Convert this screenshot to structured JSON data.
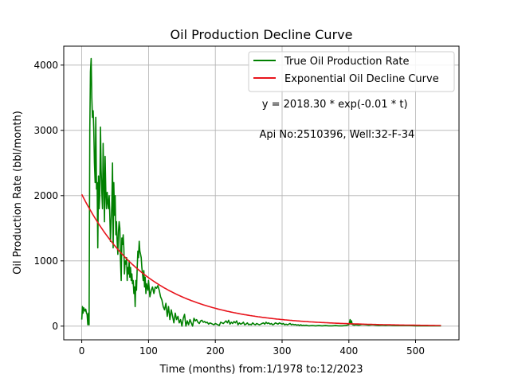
{
  "chart_data": {
    "type": "line",
    "title": "Oil Production Decline Curve",
    "xlabel": "Time (months) from:1/1978 to:12/2023",
    "ylabel": "Oil Production Rate (bbl/month)",
    "xlim": [
      -27,
      565
    ],
    "ylim": [
      -210,
      4290
    ],
    "xticks": [
      0,
      100,
      200,
      300,
      400,
      500
    ],
    "yticks": [
      0,
      1000,
      2000,
      3000,
      4000
    ],
    "grid": true,
    "legend_position": "top-right",
    "annotations": [
      {
        "text": "y = 2018.30 * exp(-0.01 * t)",
        "x": 270,
        "y": 3350
      },
      {
        "text": "Api No:2510396, Well:32-F-34",
        "x": 266,
        "y": 2890
      }
    ],
    "series": [
      {
        "name": "True Oil Production Rate",
        "color": "#008000",
        "points": [
          [
            0,
            100
          ],
          [
            1,
            300
          ],
          [
            2,
            200
          ],
          [
            3,
            280
          ],
          [
            4,
            250
          ],
          [
            5,
            230
          ],
          [
            6,
            260
          ],
          [
            7,
            200
          ],
          [
            8,
            180
          ],
          [
            9,
            20
          ],
          [
            10,
            200
          ],
          [
            11,
            20
          ],
          [
            12,
            3000
          ],
          [
            13,
            3900
          ],
          [
            14,
            4100
          ],
          [
            15,
            3500
          ],
          [
            16,
            3200
          ],
          [
            17,
            3300
          ],
          [
            18,
            3000
          ],
          [
            19,
            2500
          ],
          [
            20,
            2200
          ],
          [
            21,
            3200
          ],
          [
            22,
            2100
          ],
          [
            23,
            2200
          ],
          [
            24,
            1200
          ],
          [
            25,
            2300
          ],
          [
            26,
            1800
          ],
          [
            27,
            2000
          ],
          [
            28,
            3050
          ],
          [
            29,
            2400
          ],
          [
            30,
            2050
          ],
          [
            31,
            1800
          ],
          [
            32,
            2800
          ],
          [
            33,
            2200
          ],
          [
            34,
            1600
          ],
          [
            35,
            2600
          ],
          [
            36,
            2050
          ],
          [
            37,
            1800
          ],
          [
            38,
            2050
          ],
          [
            39,
            1900
          ],
          [
            40,
            1800
          ],
          [
            41,
            2000
          ],
          [
            42,
            1700
          ],
          [
            43,
            1300
          ],
          [
            44,
            1600
          ],
          [
            45,
            1850
          ],
          [
            46,
            2500
          ],
          [
            47,
            1200
          ],
          [
            48,
            2200
          ],
          [
            49,
            1700
          ],
          [
            50,
            2000
          ],
          [
            51,
            1400
          ],
          [
            52,
            1600
          ],
          [
            53,
            1300
          ],
          [
            54,
            1100
          ],
          [
            55,
            1450
          ],
          [
            56,
            1600
          ],
          [
            57,
            1500
          ],
          [
            58,
            1000
          ],
          [
            59,
            700
          ],
          [
            60,
            1350
          ],
          [
            61,
            1250
          ],
          [
            62,
            1400
          ],
          [
            63,
            1200
          ],
          [
            64,
            800
          ],
          [
            65,
            1000
          ],
          [
            66,
            950
          ],
          [
            67,
            1050
          ],
          [
            68,
            700
          ],
          [
            69,
            900
          ],
          [
            70,
            800
          ],
          [
            71,
            1000
          ],
          [
            72,
            750
          ],
          [
            73,
            900
          ],
          [
            74,
            700
          ],
          [
            75,
            800
          ],
          [
            76,
            650
          ],
          [
            77,
            700
          ],
          [
            78,
            500
          ],
          [
            79,
            600
          ],
          [
            80,
            300
          ],
          [
            81,
            700
          ],
          [
            82,
            550
          ],
          [
            83,
            900
          ],
          [
            84,
            1150
          ],
          [
            85,
            1050
          ],
          [
            86,
            1300
          ],
          [
            87,
            1150
          ],
          [
            88,
            1100
          ],
          [
            89,
            1050
          ],
          [
            90,
            900
          ],
          [
            91,
            800
          ],
          [
            92,
            700
          ],
          [
            93,
            850
          ],
          [
            94,
            600
          ],
          [
            95,
            750
          ],
          [
            96,
            500
          ],
          [
            97,
            650
          ],
          [
            98,
            600
          ],
          [
            99,
            550
          ],
          [
            100,
            700
          ],
          [
            102,
            450
          ],
          [
            104,
            550
          ],
          [
            106,
            600
          ],
          [
            108,
            500
          ],
          [
            110,
            600
          ],
          [
            112,
            580
          ],
          [
            114,
            620
          ],
          [
            116,
            550
          ],
          [
            118,
            450
          ],
          [
            120,
            400
          ],
          [
            122,
            300
          ],
          [
            124,
            250
          ],
          [
            126,
            350
          ],
          [
            128,
            150
          ],
          [
            130,
            300
          ],
          [
            132,
            100
          ],
          [
            134,
            250
          ],
          [
            136,
            150
          ],
          [
            138,
            50
          ],
          [
            140,
            200
          ],
          [
            142,
            100
          ],
          [
            144,
            150
          ],
          [
            146,
            50
          ],
          [
            148,
            100
          ],
          [
            150,
            0
          ],
          [
            152,
            120
          ],
          [
            154,
            180
          ],
          [
            156,
            0
          ],
          [
            158,
            80
          ],
          [
            160,
            20
          ],
          [
            162,
            100
          ],
          [
            164,
            50
          ],
          [
            166,
            0
          ],
          [
            168,
            120
          ],
          [
            170,
            80
          ],
          [
            172,
            100
          ],
          [
            174,
            60
          ],
          [
            176,
            40
          ],
          [
            178,
            80
          ],
          [
            180,
            90
          ],
          [
            182,
            60
          ],
          [
            184,
            70
          ],
          [
            186,
            50
          ],
          [
            188,
            60
          ],
          [
            190,
            30
          ],
          [
            192,
            50
          ],
          [
            194,
            40
          ],
          [
            196,
            30
          ],
          [
            198,
            20
          ],
          [
            200,
            40
          ],
          [
            202,
            30
          ],
          [
            204,
            20
          ],
          [
            206,
            10
          ],
          [
            208,
            60
          ],
          [
            210,
            50
          ],
          [
            212,
            40
          ],
          [
            214,
            60
          ],
          [
            216,
            80
          ],
          [
            218,
            50
          ],
          [
            220,
            90
          ],
          [
            222,
            30
          ],
          [
            224,
            60
          ],
          [
            226,
            40
          ],
          [
            228,
            70
          ],
          [
            230,
            50
          ],
          [
            232,
            80
          ],
          [
            234,
            20
          ],
          [
            236,
            50
          ],
          [
            238,
            30
          ],
          [
            240,
            40
          ],
          [
            242,
            60
          ],
          [
            244,
            20
          ],
          [
            246,
            30
          ],
          [
            248,
            50
          ],
          [
            250,
            20
          ],
          [
            252,
            30
          ],
          [
            254,
            20
          ],
          [
            256,
            50
          ],
          [
            258,
            30
          ],
          [
            260,
            20
          ],
          [
            262,
            40
          ],
          [
            264,
            30
          ],
          [
            266,
            20
          ],
          [
            268,
            30
          ],
          [
            270,
            40
          ],
          [
            272,
            50
          ],
          [
            274,
            30
          ],
          [
            276,
            60
          ],
          [
            278,
            40
          ],
          [
            280,
            50
          ],
          [
            282,
            30
          ],
          [
            284,
            40
          ],
          [
            286,
            20
          ],
          [
            288,
            30
          ],
          [
            290,
            50
          ],
          [
            292,
            40
          ],
          [
            294,
            30
          ],
          [
            296,
            50
          ],
          [
            298,
            40
          ],
          [
            300,
            30
          ],
          [
            302,
            40
          ],
          [
            304,
            20
          ],
          [
            306,
            30
          ],
          [
            308,
            20
          ],
          [
            310,
            30
          ],
          [
            312,
            40
          ],
          [
            314,
            20
          ],
          [
            316,
            30
          ],
          [
            318,
            20
          ],
          [
            320,
            25
          ],
          [
            322,
            15
          ],
          [
            324,
            20
          ],
          [
            326,
            10
          ],
          [
            328,
            20
          ],
          [
            330,
            10
          ],
          [
            332,
            15
          ],
          [
            334,
            10
          ],
          [
            336,
            15
          ],
          [
            338,
            10
          ],
          [
            340,
            5
          ],
          [
            345,
            10
          ],
          [
            350,
            5
          ],
          [
            355,
            8
          ],
          [
            360,
            5
          ],
          [
            365,
            8
          ],
          [
            370,
            5
          ],
          [
            375,
            5
          ],
          [
            380,
            8
          ],
          [
            385,
            5
          ],
          [
            390,
            5
          ],
          [
            395,
            10
          ],
          [
            400,
            20
          ],
          [
            401,
            60
          ],
          [
            402,
            100
          ],
          [
            403,
            30
          ],
          [
            404,
            80
          ],
          [
            405,
            30
          ],
          [
            406,
            20
          ],
          [
            408,
            15
          ],
          [
            410,
            20
          ],
          [
            415,
            15
          ],
          [
            420,
            25
          ],
          [
            425,
            20
          ],
          [
            430,
            15
          ],
          [
            435,
            20
          ],
          [
            440,
            15
          ],
          [
            445,
            10
          ],
          [
            450,
            15
          ],
          [
            455,
            10
          ],
          [
            460,
            15
          ],
          [
            465,
            10
          ],
          [
            470,
            8
          ],
          [
            480,
            10
          ],
          [
            490,
            8
          ],
          [
            500,
            5
          ],
          [
            510,
            5
          ],
          [
            520,
            5
          ],
          [
            530,
            5
          ],
          [
            538,
            5
          ]
        ]
      },
      {
        "name": "Exponential Oil Decline Curve",
        "color": "#e8141c",
        "equation": {
          "a": 2018.3,
          "b": 0.01
        },
        "x_range": [
          0,
          538
        ]
      }
    ]
  }
}
